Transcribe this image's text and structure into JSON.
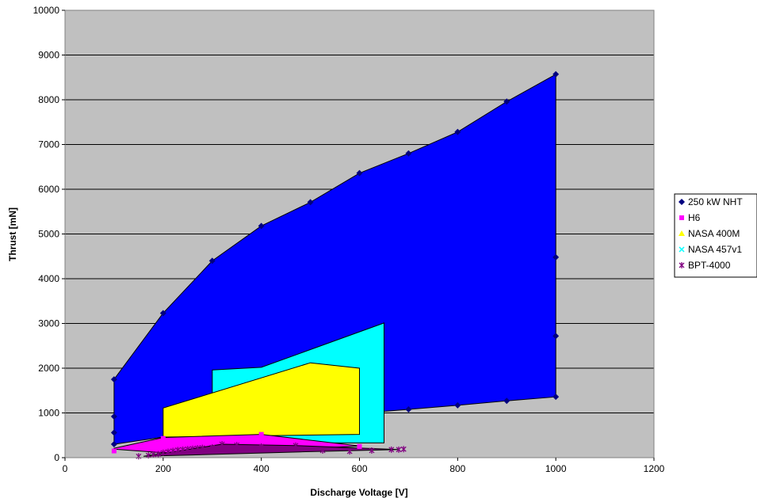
{
  "chart_data": {
    "type": "area",
    "title": "",
    "xlabel": "Discharge Voltage [V]",
    "ylabel": "Thrust [mN]",
    "xlim": [
      0,
      1200
    ],
    "ylim": [
      0,
      10000
    ],
    "x_ticks": [
      0,
      200,
      400,
      600,
      800,
      1000,
      1200
    ],
    "y_ticks": [
      0,
      1000,
      2000,
      3000,
      4000,
      5000,
      6000,
      7000,
      8000,
      9000,
      10000
    ],
    "grid": "horizontal",
    "legend_position": "right",
    "plot_background": "#c0c0c0",
    "series": [
      {
        "name": "250 kW NHT",
        "color": "#0000ff",
        "marker_color": "#000080",
        "marker": "diamond",
        "envelope": [
          [
            100,
            1750
          ],
          [
            200,
            3230
          ],
          [
            300,
            4400
          ],
          [
            400,
            5180
          ],
          [
            500,
            5710
          ],
          [
            600,
            6360
          ],
          [
            700,
            6800
          ],
          [
            800,
            7280
          ],
          [
            900,
            7960
          ],
          [
            1000,
            8570
          ],
          [
            1000,
            1360
          ],
          [
            900,
            1270
          ],
          [
            800,
            1170
          ],
          [
            700,
            1080
          ],
          [
            600,
            990
          ],
          [
            500,
            880
          ],
          [
            400,
            760
          ],
          [
            300,
            620
          ],
          [
            200,
            460
          ],
          [
            100,
            300
          ]
        ],
        "points": [
          [
            100,
            1750
          ],
          [
            200,
            3230
          ],
          [
            300,
            4400
          ],
          [
            400,
            5180
          ],
          [
            500,
            5710
          ],
          [
            600,
            6360
          ],
          [
            700,
            6800
          ],
          [
            800,
            7280
          ],
          [
            900,
            7960
          ],
          [
            1000,
            8570
          ],
          [
            100,
            920
          ],
          [
            100,
            560
          ],
          [
            100,
            300
          ],
          [
            700,
            1080
          ],
          [
            800,
            1170
          ],
          [
            900,
            1270
          ],
          [
            1000,
            1360
          ],
          [
            1000,
            2720
          ],
          [
            1000,
            4480
          ]
        ]
      },
      {
        "name": "NASA 457v1",
        "color": "#00ffff",
        "marker_color": "#00ffff",
        "marker": "x",
        "envelope": [
          [
            300,
            1960
          ],
          [
            400,
            2020
          ],
          [
            650,
            3010
          ],
          [
            650,
            330
          ],
          [
            300,
            330
          ]
        ],
        "points": []
      },
      {
        "name": "NASA 400M",
        "color": "#ffff00",
        "marker_color": "#ffff00",
        "marker": "triangle",
        "envelope": [
          [
            200,
            1110
          ],
          [
            500,
            2120
          ],
          [
            600,
            2000
          ],
          [
            600,
            520
          ],
          [
            200,
            460
          ]
        ],
        "points": []
      },
      {
        "name": "H6",
        "color": "#ff00ff",
        "marker_color": "#ff00ff",
        "marker": "square",
        "envelope": [
          [
            100,
            210
          ],
          [
            200,
            450
          ],
          [
            400,
            520
          ],
          [
            600,
            260
          ],
          [
            400,
            150
          ],
          [
            200,
            110
          ],
          [
            100,
            190
          ]
        ],
        "points": [
          [
            100,
            150
          ],
          [
            150,
            240
          ],
          [
            200,
            430
          ],
          [
            400,
            520
          ],
          [
            600,
            250
          ]
        ]
      },
      {
        "name": "BPT-4000",
        "color": "#800080",
        "marker_color": "#800080",
        "marker": "star",
        "envelope": [
          [
            160,
            30
          ],
          [
            320,
            300
          ],
          [
            470,
            270
          ],
          [
            680,
            180
          ],
          [
            480,
            130
          ],
          [
            260,
            60
          ]
        ],
        "points": [
          [
            150,
            30
          ],
          [
            170,
            50
          ],
          [
            180,
            70
          ],
          [
            190,
            80
          ],
          [
            200,
            110
          ],
          [
            210,
            130
          ],
          [
            220,
            150
          ],
          [
            230,
            170
          ],
          [
            240,
            180
          ],
          [
            250,
            190
          ],
          [
            260,
            200
          ],
          [
            270,
            210
          ],
          [
            280,
            220
          ],
          [
            300,
            230
          ],
          [
            320,
            300
          ],
          [
            350,
            280
          ],
          [
            400,
            250
          ],
          [
            470,
            270
          ],
          [
            525,
            160
          ],
          [
            580,
            140
          ],
          [
            625,
            160
          ],
          [
            665,
            180
          ],
          [
            680,
            180
          ],
          [
            690,
            190
          ]
        ]
      }
    ],
    "legend_order": [
      "250 kW NHT",
      "H6",
      "NASA 400M",
      "NASA 457v1",
      "BPT-4000"
    ]
  }
}
